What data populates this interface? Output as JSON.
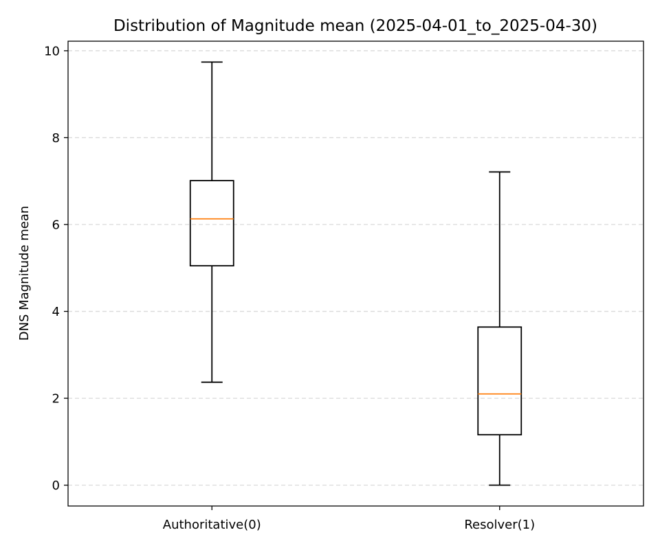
{
  "chart_data": {
    "type": "boxplot",
    "title": "Distribution of Magnitude mean (2025-04-01_to_2025-04-30)",
    "xlabel": "",
    "ylabel": "DNS Magnitude mean",
    "ylim": [
      -0.48,
      10.22
    ],
    "yticks": [
      0,
      2,
      4,
      6,
      8,
      10
    ],
    "grid": {
      "y": true,
      "style": "dashed"
    },
    "categories": [
      "Authoritative(0)",
      "Resolver(1)"
    ],
    "boxes": [
      {
        "category": "Authoritative(0)",
        "whisker_low": 2.37,
        "q1": 5.05,
        "median": 6.13,
        "q3": 7.01,
        "whisker_high": 9.74
      },
      {
        "category": "Resolver(1)",
        "whisker_low": 0.0,
        "q1": 1.16,
        "median": 2.1,
        "q3": 3.64,
        "whisker_high": 7.21
      }
    ],
    "colors": {
      "box": "#000000",
      "median": "#ff7f0e",
      "grid": "#d9d9d9"
    }
  }
}
